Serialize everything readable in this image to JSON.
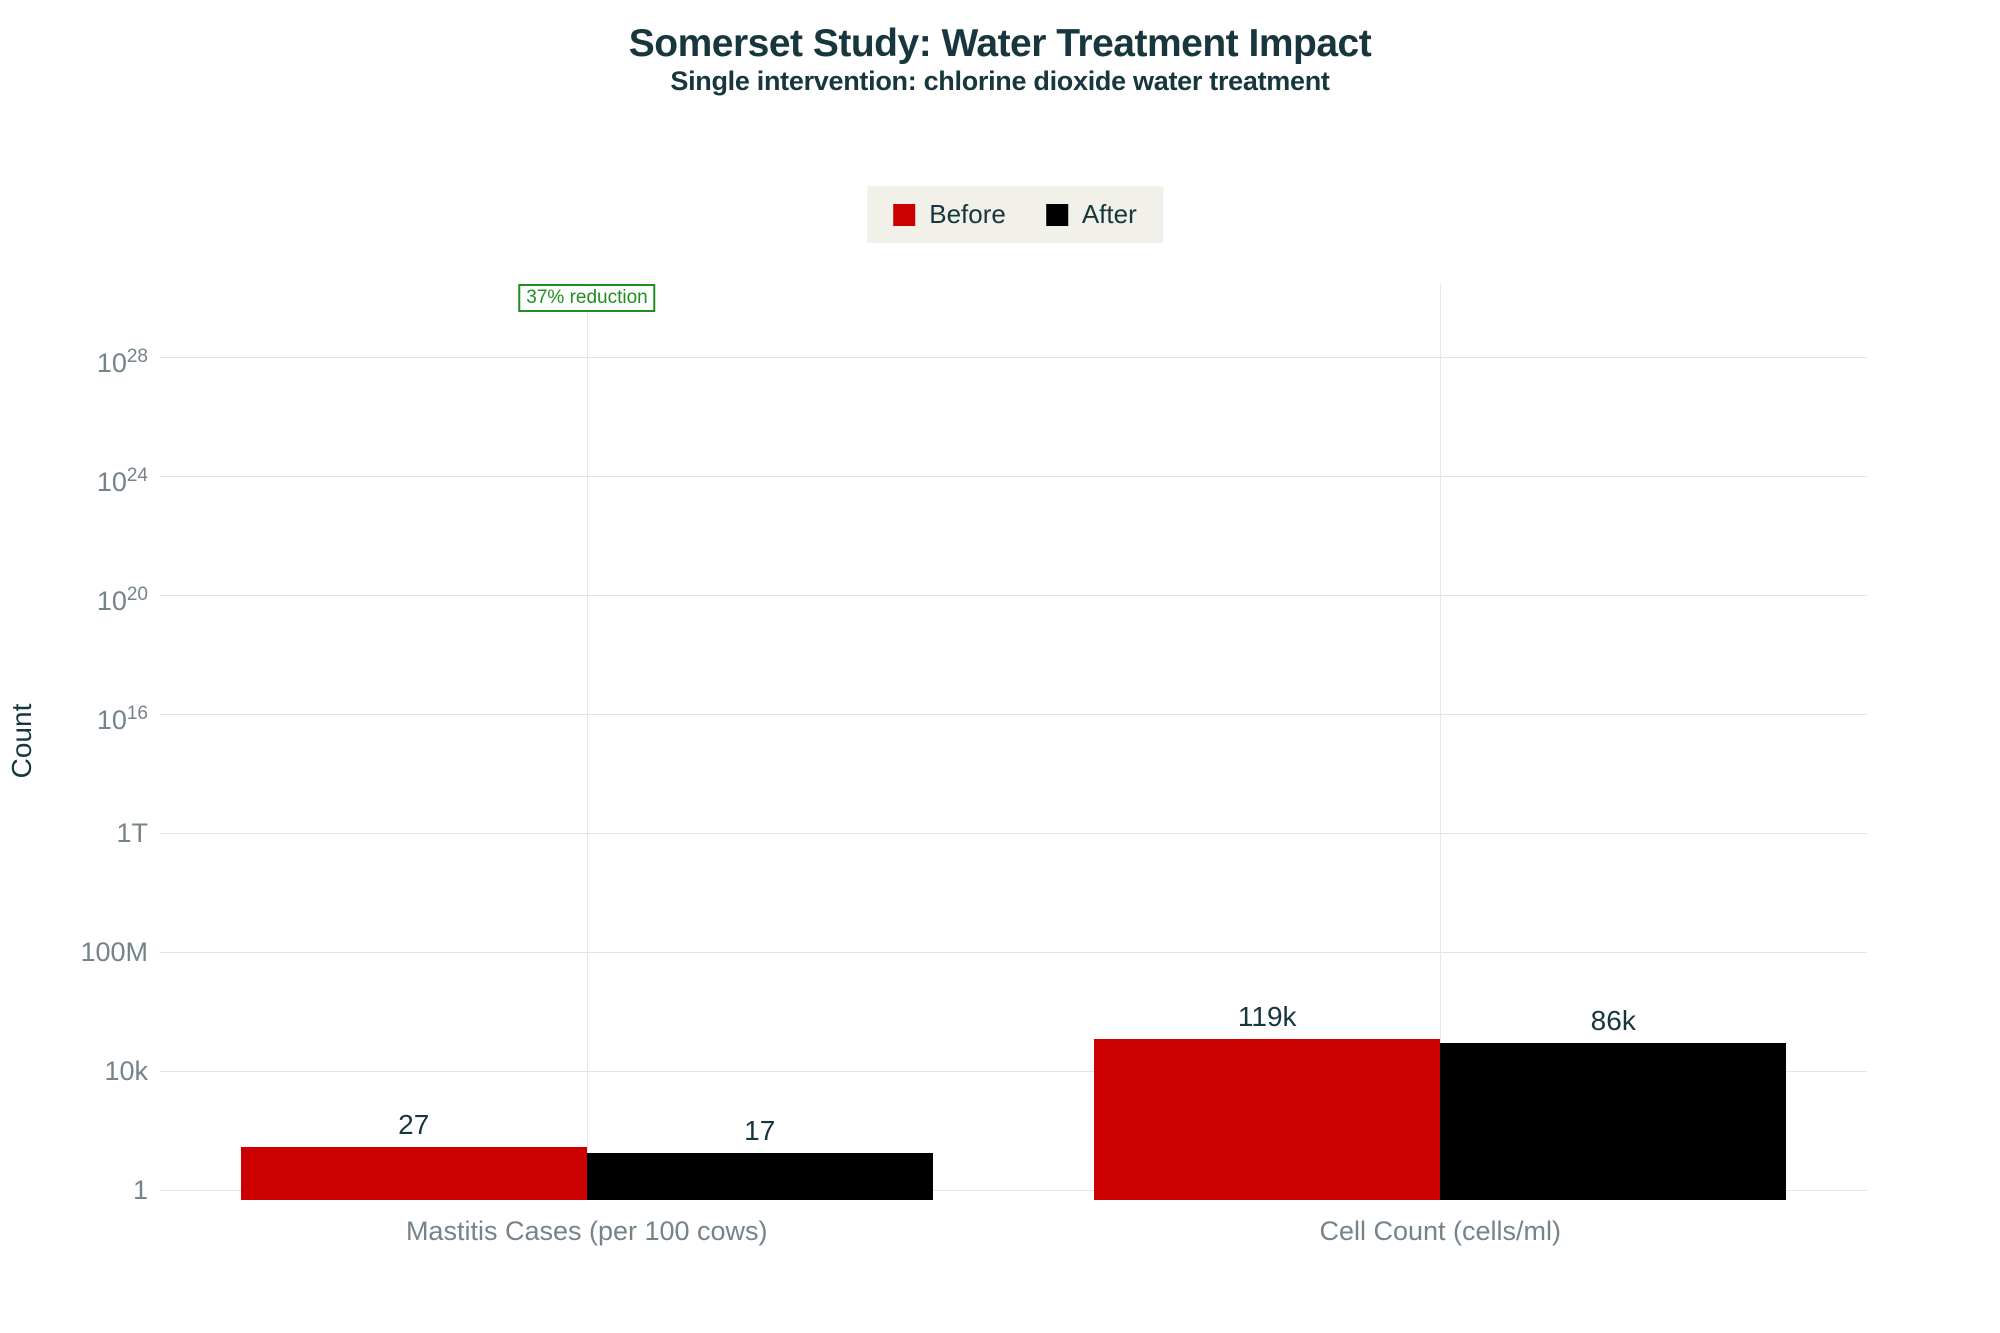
{
  "header": {
    "title": "Somerset Study: Water Treatment Impact",
    "subtitle": "Single intervention: chlorine dioxide water treatment"
  },
  "legend": {
    "items": [
      {
        "label": "Before",
        "color": "#cc0000"
      },
      {
        "label": "After",
        "color": "#000000"
      }
    ]
  },
  "annotation": {
    "text": "37% reduction",
    "color": "#1f8f1f"
  },
  "y_axis": {
    "title": "Count",
    "ticks": [
      {
        "text": "1",
        "exp": 0
      },
      {
        "text": "10k",
        "exp": 4
      },
      {
        "text": "100M",
        "exp": 8
      },
      {
        "text": "1T",
        "exp": 12
      },
      {
        "text": "10",
        "sup": "16",
        "exp": 16
      },
      {
        "text": "10",
        "sup": "20",
        "exp": 20
      },
      {
        "text": "10",
        "sup": "24",
        "exp": 24
      },
      {
        "text": "10",
        "sup": "28",
        "exp": 28
      }
    ]
  },
  "chart_data": {
    "type": "bar",
    "yscale": "log",
    "title": "Somerset Study: Water Treatment Impact",
    "subtitle": "Single intervention: chlorine dioxide water treatment",
    "xlabel": "",
    "ylabel": "Count",
    "categories": [
      "Mastitis Cases (per 100 cows)",
      "Cell Count (cells/ml)"
    ],
    "series": [
      {
        "name": "Before",
        "color": "#cc0000",
        "values": [
          27,
          119000
        ],
        "value_labels": [
          "27",
          "119k"
        ]
      },
      {
        "name": "After",
        "color": "#000000",
        "values": [
          17,
          86000
        ],
        "value_labels": [
          "17",
          "86k"
        ]
      }
    ],
    "annotations": [
      {
        "text": "37% reduction",
        "target_category": "Mastitis Cases (per 100 cows)"
      }
    ],
    "ylim": [
      0.45,
      3.2e+30
    ],
    "grid": true,
    "legend_position": "top"
  },
  "colors": {
    "background": "#ffffff",
    "title_text": "#17363e",
    "axis_text": "#75838a",
    "gridline": "#e4e4e4",
    "legend_bg": "#f1f0e9",
    "before_red": "#cc0000",
    "after_black": "#000000",
    "annotation_green": "#1f8f1f"
  }
}
